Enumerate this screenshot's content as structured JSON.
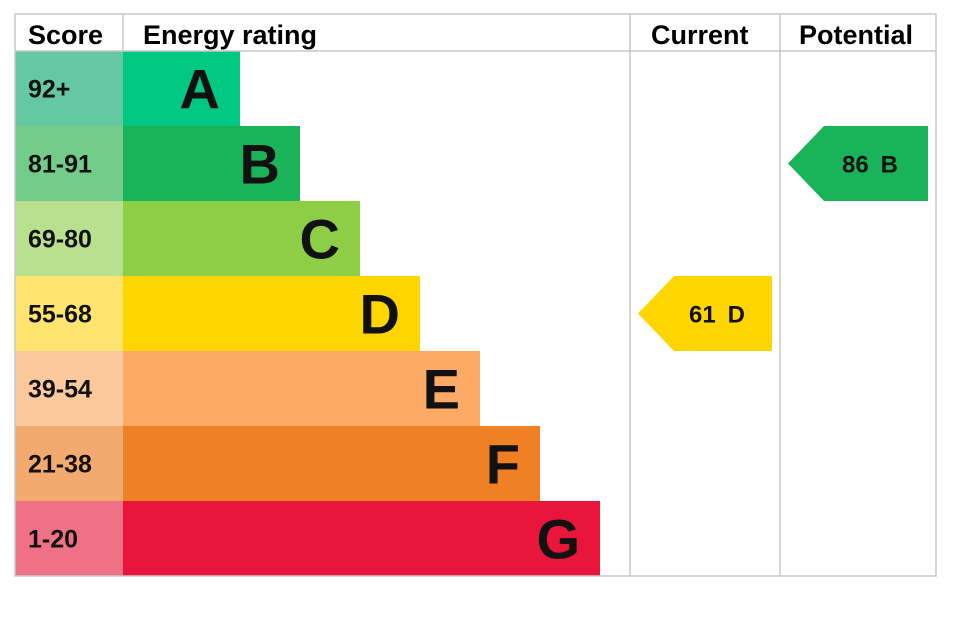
{
  "headers": {
    "score": "Score",
    "rating": "Energy rating",
    "current": "Current",
    "potential": "Potential"
  },
  "chart_data": {
    "type": "bar",
    "bands": [
      {
        "letter": "A",
        "range": "92+",
        "color": "#00c781",
        "score_bg": "#64c8a3"
      },
      {
        "letter": "B",
        "range": "81-91",
        "color": "#19b459",
        "score_bg": "#74cc8a"
      },
      {
        "letter": "C",
        "range": "69-80",
        "color": "#8dce46",
        "score_bg": "#b9e08e"
      },
      {
        "letter": "D",
        "range": "55-68",
        "color": "#ffd500",
        "score_bg": "#ffe470"
      },
      {
        "letter": "E",
        "range": "39-54",
        "color": "#fcaa65",
        "score_bg": "#fcc99c"
      },
      {
        "letter": "F",
        "range": "21-38",
        "color": "#ef8023",
        "score_bg": "#f3aa6e"
      },
      {
        "letter": "G",
        "range": "1-20",
        "color": "#e9153b",
        "score_bg": "#ef7186"
      }
    ],
    "current": {
      "value": 61,
      "letter": "D",
      "color": "#ffd500"
    },
    "potential": {
      "value": 86,
      "letter": "B",
      "color": "#19b459"
    }
  }
}
